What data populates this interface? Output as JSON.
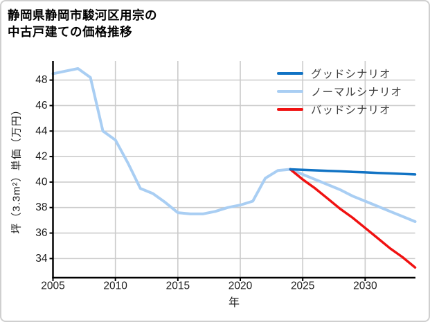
{
  "title": {
    "line1": "静岡県静岡市駿河区用宗の",
    "line2": "中古戸建ての価格推移"
  },
  "colors": {
    "good_line": "#1173c4",
    "normal_line": "#a9cef3",
    "bad_line": "#f01111",
    "grid": "#cbcbcb",
    "axis": "#000000",
    "tick_text": "#1c1c1c",
    "legend_text": "#3d3d3d",
    "card_border": "#cfcfcf",
    "background": "#ffffff"
  },
  "chart_data": {
    "type": "line",
    "title": "静岡県静岡市駿河区用宗の中古戸建ての価格推移",
    "xlabel": "年",
    "ylabel": "坪（3.3m²）単価（万円）",
    "xlim": [
      2005,
      2034
    ],
    "ylim": [
      32.5,
      49.5
    ],
    "xticks": [
      2005,
      2010,
      2015,
      2020,
      2025,
      2030
    ],
    "yticks": [
      34,
      36,
      38,
      40,
      42,
      44,
      46,
      48
    ],
    "grid": true,
    "legend_position": "upper right inside plot",
    "series": [
      {
        "name": "グッドシナリオ",
        "color": "#1173c4",
        "width": 3.5,
        "x": [
          2024,
          2025,
          2026,
          2027,
          2028,
          2029,
          2030,
          2031,
          2032,
          2033,
          2034
        ],
        "values": [
          41.0,
          40.96,
          40.92,
          40.88,
          40.84,
          40.8,
          40.76,
          40.72,
          40.68,
          40.64,
          40.6
        ]
      },
      {
        "name": "ノーマルシナリオ",
        "color": "#a9cef3",
        "width": 4,
        "x": [
          2005,
          2006,
          2007,
          2008,
          2009,
          2010,
          2011,
          2012,
          2013,
          2014,
          2015,
          2016,
          2017,
          2018,
          2019,
          2020,
          2021,
          2022,
          2023,
          2024,
          2025,
          2026,
          2027,
          2028,
          2029,
          2030,
          2031,
          2032,
          2033,
          2034
        ],
        "values": [
          48.5,
          48.7,
          48.9,
          48.2,
          44.0,
          43.3,
          41.5,
          39.5,
          39.1,
          38.4,
          37.6,
          37.5,
          37.5,
          37.7,
          38.0,
          38.2,
          38.5,
          40.3,
          40.9,
          41.0,
          40.6,
          40.2,
          39.8,
          39.4,
          38.9,
          38.5,
          38.1,
          37.7,
          37.3,
          36.9
        ]
      },
      {
        "name": "バッドシナリオ",
        "color": "#f01111",
        "width": 3.5,
        "x": [
          2024,
          2025,
          2026,
          2027,
          2028,
          2029,
          2030,
          2031,
          2032,
          2033,
          2034
        ],
        "values": [
          41.0,
          40.2,
          39.5,
          38.7,
          37.9,
          37.2,
          36.4,
          35.6,
          34.8,
          34.1,
          33.3
        ]
      }
    ]
  }
}
